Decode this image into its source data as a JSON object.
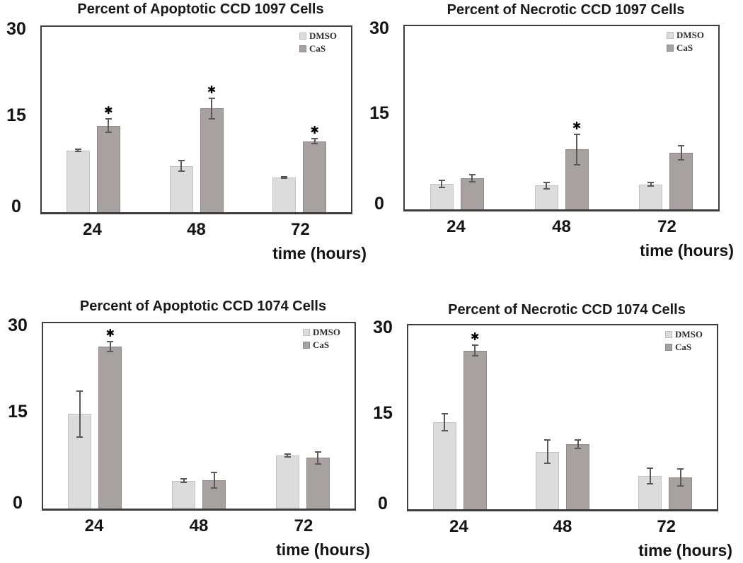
{
  "figure": {
    "background": "#ffffff",
    "colors": {
      "dmso_fill": "#dcdcdc",
      "dmso_border": "#c2c2c2",
      "cas_fill": "#a7a19f",
      "cas_border": "#8e8886",
      "frame": "#3d3d3d",
      "error_bar": "#5a5a5a",
      "title_text": "#1a1a1a",
      "tick_text": "#141414",
      "legend_text": "#2e2e2e"
    },
    "significance_symbol": "✱"
  },
  "chart_data": [
    {
      "type": "bar",
      "title": "Percent of Apoptotic CCD 1097 Cells",
      "xlabel": "time (hours)",
      "ylabel": "",
      "categories": [
        "24",
        "48",
        "72"
      ],
      "yticks": [
        "0",
        "15",
        "30"
      ],
      "ylim": [
        0,
        30
      ],
      "grid": false,
      "legend_position": "top-right inside",
      "series": [
        {
          "name": "DMSO",
          "values": [
            10,
            7.5,
            5.6
          ],
          "errors": [
            0.3,
            1.0,
            0.25
          ],
          "significant": [
            false,
            false,
            false
          ]
        },
        {
          "name": "CaS",
          "values": [
            14,
            16.8,
            11.5
          ],
          "errors": [
            1.2,
            1.8,
            0.5
          ],
          "significant": [
            true,
            true,
            true
          ]
        }
      ]
    },
    {
      "type": "bar",
      "title": "Percent of Necrotic CCD 1097 Cells",
      "xlabel": "time (hours)",
      "ylabel": "",
      "categories": [
        "24",
        "48",
        "72"
      ],
      "yticks": [
        "0",
        "15",
        "30"
      ],
      "ylim": [
        0,
        30
      ],
      "grid": false,
      "legend_position": "top-right inside",
      "series": [
        {
          "name": "DMSO",
          "values": [
            4.2,
            3.9,
            4.1
          ],
          "errors": [
            0.7,
            0.6,
            0.4
          ],
          "significant": [
            false,
            false,
            false
          ]
        },
        {
          "name": "CaS",
          "values": [
            5.1,
            9.8,
            9.3
          ],
          "errors": [
            0.7,
            2.6,
            1.3
          ],
          "significant": [
            false,
            true,
            false
          ]
        }
      ]
    },
    {
      "type": "bar",
      "title": "Percent of Apoptotic CCD 1074 Cells",
      "xlabel": "time (hours)",
      "ylabel": "",
      "categories": [
        "24",
        "48",
        "72"
      ],
      "yticks": [
        "0",
        "15",
        "30"
      ],
      "ylim": [
        0,
        30
      ],
      "grid": false,
      "legend_position": "top-right inside",
      "series": [
        {
          "name": "DMSO",
          "values": [
            15.3,
            4.5,
            8.6
          ],
          "errors": [
            3.8,
            0.4,
            0.3
          ],
          "significant": [
            false,
            false,
            false
          ]
        },
        {
          "name": "CaS",
          "values": [
            26.2,
            4.6,
            8.2
          ],
          "errors": [
            0.9,
            1.4,
            1.1
          ],
          "significant": [
            true,
            false,
            false
          ]
        }
      ]
    },
    {
      "type": "bar",
      "title": "Percent of Necrotic CCD 1074 Cells",
      "xlabel": "time (hours)",
      "ylabel": "",
      "categories": [
        "24",
        "48",
        "72"
      ],
      "yticks": [
        "0",
        "15",
        "30"
      ],
      "ylim": [
        0,
        30
      ],
      "grid": false,
      "legend_position": "top-right inside",
      "series": [
        {
          "name": "DMSO",
          "values": [
            14.2,
            9.4,
            5.4
          ],
          "errors": [
            1.5,
            2.0,
            1.4
          ],
          "significant": [
            false,
            false,
            false
          ]
        },
        {
          "name": "CaS",
          "values": [
            25.9,
            10.6,
            5.2
          ],
          "errors": [
            1.0,
            0.8,
            1.5
          ],
          "significant": [
            true,
            false,
            false
          ]
        }
      ]
    }
  ]
}
